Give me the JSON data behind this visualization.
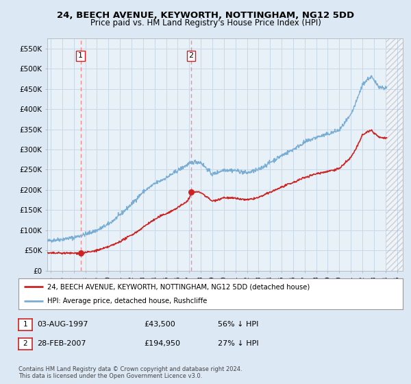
{
  "title": "24, BEECH AVENUE, KEYWORTH, NOTTINGHAM, NG12 5DD",
  "subtitle": "Price paid vs. HM Land Registry's House Price Index (HPI)",
  "xlim_start": 1994.7,
  "xlim_end": 2025.5,
  "ylim_min": 0,
  "ylim_max": 575000,
  "yticks": [
    0,
    50000,
    100000,
    150000,
    200000,
    250000,
    300000,
    350000,
    400000,
    450000,
    500000,
    550000
  ],
  "ytick_labels": [
    "£0",
    "£50K",
    "£100K",
    "£150K",
    "£200K",
    "£250K",
    "£300K",
    "£350K",
    "£400K",
    "£450K",
    "£500K",
    "£550K"
  ],
  "transaction1": {
    "date_num": 1997.58,
    "price": 43500,
    "label": "1"
  },
  "transaction2": {
    "date_num": 2007.16,
    "price": 194950,
    "label": "2"
  },
  "hpi_line_color": "#7aadd4",
  "price_line_color": "#cc2222",
  "vline_color": "#ff8888",
  "grid_color": "#c8d8e8",
  "bg_color": "#dce8f4",
  "plot_bg": "#e8f0f8",
  "hatch_start": 2024.08,
  "legend_box_color": "#cc2222",
  "legend1_text": "24, BEECH AVENUE, KEYWORTH, NOTTINGHAM, NG12 5DD (detached house)",
  "legend2_text": "HPI: Average price, detached house, Rushcliffe",
  "table_row1": [
    "1",
    "03-AUG-1997",
    "£43,500",
    "56% ↓ HPI"
  ],
  "table_row2": [
    "2",
    "28-FEB-2007",
    "£194,950",
    "27% ↓ HPI"
  ],
  "footer": "Contains HM Land Registry data © Crown copyright and database right 2024.\nThis data is licensed under the Open Government Licence v3.0.",
  "title_fontsize": 9.5,
  "subtitle_fontsize": 8.5
}
